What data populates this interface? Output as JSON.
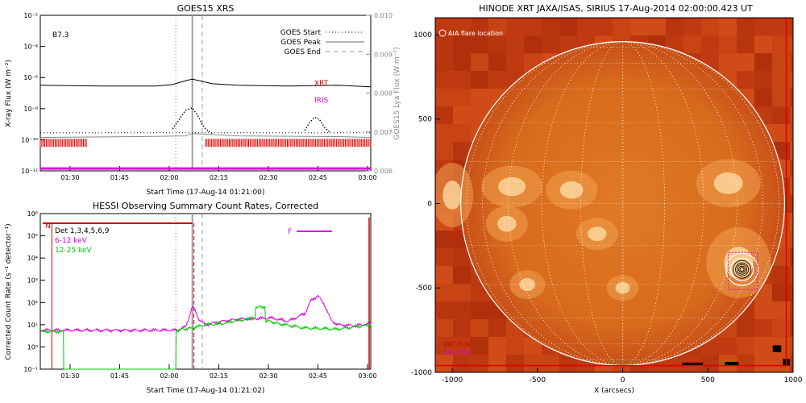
{
  "chart_data": [
    {
      "type": "line",
      "title": "GOES15 XRS",
      "xlabel": "Start Time (17-Aug-14 01:21:00)",
      "ylabel": "X-ray Flux (W m⁻²)",
      "ylabel_right": "GOES15 Lya Flux (W m⁻²)",
      "yscale": "log",
      "ylim_exp": [
        -12,
        -2
      ],
      "ylim_right": [
        0.006,
        0.01
      ],
      "x_ticks": [
        "01:30",
        "01:45",
        "02:00",
        "02:15",
        "02:30",
        "02:45",
        "03:00"
      ],
      "y_ticks": [
        "10⁻¹²",
        "10⁻¹⁰",
        "10⁻⁸",
        "10⁻⁶",
        "10⁻⁴",
        "10⁻²"
      ],
      "y_ticks_right": [
        "0.006",
        "0.007",
        "0.008",
        "0.009",
        "0.010"
      ],
      "class_label": "B7.3",
      "legend": [
        {
          "label": "GOES Start",
          "style": "dotted"
        },
        {
          "label": "GOES Peak",
          "style": "solid"
        },
        {
          "label": "GOES End",
          "style": "dashed"
        }
      ],
      "instrument_labels": [
        {
          "label": "XRT",
          "color": "#cc0000"
        },
        {
          "label": "IRIS",
          "color": "#dd00dd"
        }
      ],
      "event_lines_min": {
        "start": 41,
        "peak": 46,
        "end": 49
      },
      "series": [
        {
          "key": "long",
          "color": "#000000",
          "x_min": [
            0,
            20,
            35,
            40,
            44,
            46,
            49,
            52,
            60,
            75,
            90,
            100
          ],
          "log_y": [
            -6.5,
            -6.55,
            -6.55,
            -6.45,
            -6.2,
            -6.1,
            -6.25,
            -6.4,
            -6.5,
            -6.55,
            -6.5,
            -6.6
          ]
        },
        {
          "key": "short",
          "color": "#000000",
          "x_min": [
            40,
            42,
            44,
            46,
            47.5,
            49,
            50,
            52
          ],
          "log_y": [
            -9.3,
            -8.7,
            -8.1,
            -7.95,
            -8.4,
            -9.0,
            -9.3,
            -9.6
          ]
        },
        {
          "key": "short-2",
          "color": "#000000",
          "x_min": [
            80,
            81.5,
            83,
            84.5,
            86,
            87.5
          ],
          "log_y": [
            -9.4,
            -8.9,
            -8.55,
            -8.7,
            -9.2,
            -9.5
          ]
        },
        {
          "key": "lya",
          "color": "#888888",
          "x_min": [
            0,
            30,
            44,
            46,
            60,
            90,
            100
          ],
          "log_y": [
            -9.85,
            -9.8,
            -9.75,
            -9.6,
            -9.75,
            -9.8,
            -9.85
          ]
        }
      ],
      "xrt_coverage_min": [
        [
          0,
          14
        ],
        [
          50,
          100
        ]
      ],
      "iris_coverage_min": [
        [
          0,
          100
        ]
      ]
    },
    {
      "type": "line",
      "title": "HESSI Observing Summary Count Rates, Corrected",
      "xlabel": "Start Time (17-Aug-14 01:21:02)",
      "ylabel": "Corrected Count Rate (s⁻¹ detector⁻¹)",
      "yscale": "log",
      "ylim_exp": [
        -1,
        6
      ],
      "x_ticks": [
        "01:30",
        "01:45",
        "02:00",
        "02:15",
        "02:30",
        "02:45",
        "03:00"
      ],
      "y_ticks": [
        "10⁻¹",
        "10⁰",
        "10¹",
        "10²",
        "10³",
        "10⁴",
        "10⁵",
        "10⁶"
      ],
      "legend": [
        {
          "label": "Det 1,3,4,5,6,9",
          "color": "#000000"
        },
        {
          "label": "6-12 keV",
          "color": "#dd00dd"
        },
        {
          "label": "12-25 keV",
          "color": "#00cc00"
        }
      ],
      "flag_labels": [
        {
          "label": "N",
          "color": "#cc0000"
        },
        {
          "label": "F",
          "color": "#dd00dd"
        }
      ],
      "event_lines_min": {
        "start": 41,
        "peak": 46,
        "end": 49
      },
      "series": [
        {
          "name": "6-12 keV",
          "color": "#dd00dd",
          "x_min": [
            0,
            7,
            41,
            44,
            46,
            47,
            48,
            50,
            55,
            60,
            70,
            75,
            80,
            82,
            84,
            86,
            88,
            90,
            95,
            100
          ],
          "log_y": [
            0.75,
            0.75,
            0.75,
            0.9,
            1.8,
            1.6,
            1.25,
            1.0,
            1.15,
            1.25,
            1.3,
            1.15,
            1.5,
            2.1,
            2.3,
            1.9,
            1.2,
            1.0,
            0.95,
            1.05
          ]
        },
        {
          "name": "12-25 keV",
          "color": "#00cc00",
          "x_min": [
            0,
            7,
            7.1,
            41,
            41.1,
            46,
            50,
            55,
            60,
            65,
            65.1,
            68,
            68.1,
            72,
            80,
            90,
            100
          ],
          "log_y": [
            0.7,
            0.7,
            -1.0,
            -1.0,
            0.75,
            0.85,
            1.0,
            1.05,
            1.2,
            1.3,
            1.8,
            1.8,
            1.2,
            1.05,
            0.85,
            0.8,
            1.0
          ]
        }
      ],
      "n_flag_min": [
        0,
        46
      ]
    },
    {
      "type": "scatter",
      "title": "HINODE XRT JAXA/ISAS, SIRIUS 17-Aug-2014 02:00:00.423 UT",
      "xlabel": "X (arcsecs)",
      "ylabel": "",
      "xlim": [
        -1100,
        1000
      ],
      "ylim": [
        -1000,
        1100
      ],
      "x_ticks": [
        "-1000",
        "-500",
        "0",
        "500",
        "1000"
      ],
      "y_ticks": [
        "-1000",
        "-500",
        "0",
        "500",
        "1000"
      ],
      "solar_radius_arcsec": 950,
      "legend": [
        {
          "label": "AIA flare location",
          "color": "#ffffff"
        },
        {
          "label": "XRT FOV",
          "color": "#cc0000"
        },
        {
          "label": "IRIS FOV",
          "color": "#dd00dd"
        }
      ],
      "flare_location": {
        "x": 700,
        "y": -390
      },
      "xrt_fov": [
        -1100,
        -960,
        960,
        1100
      ],
      "iris_fov": [
        620,
        -510,
        790,
        -290
      ]
    }
  ]
}
